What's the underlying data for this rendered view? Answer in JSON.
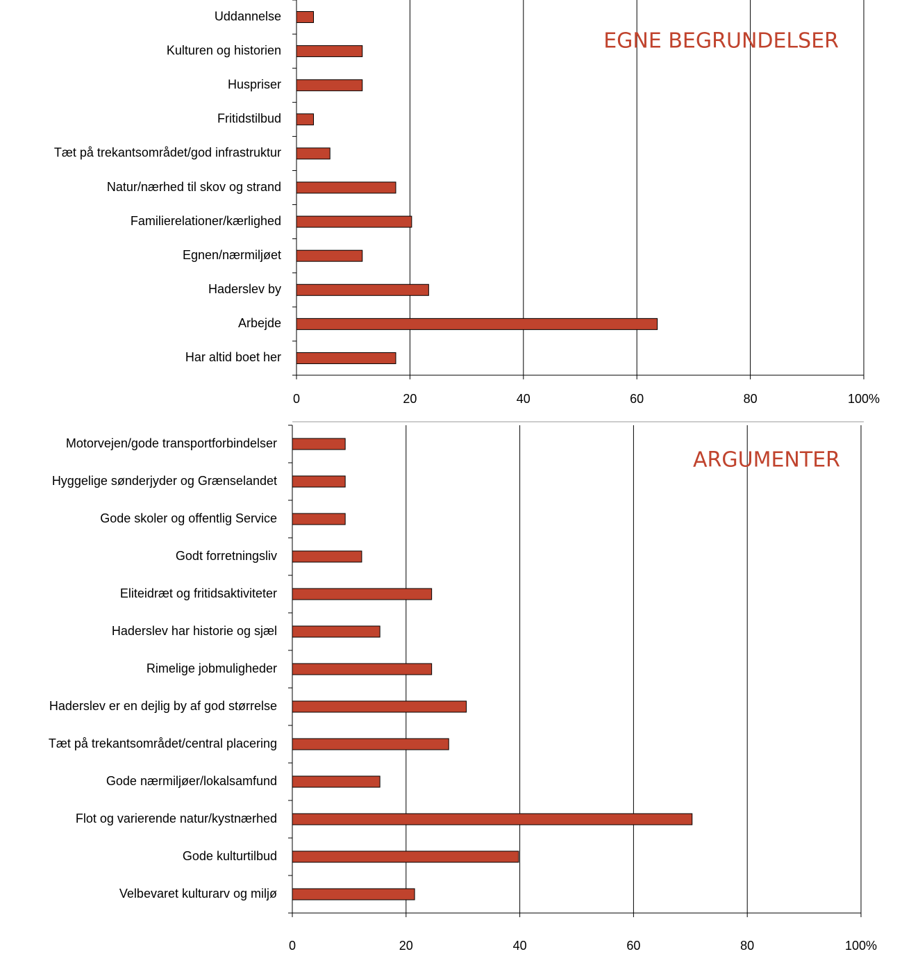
{
  "chart_data": [
    {
      "type": "bar",
      "orientation": "horizontal",
      "annotation": "EGNE BEGRUNDELSER",
      "categories": [
        "Uddannelse",
        "Kulturen og historien",
        "Huspriser",
        "Fritidstilbud",
        "Tæt på trekantsområdet/god infrastruktur",
        "Natur/nærhed til skov og strand",
        "Familierelationer/kærlighed",
        "Egnen/nærmiljøet",
        "Haderslev by",
        "Arbejde",
        "Har altid boet her"
      ],
      "values": [
        3,
        11.6,
        11.6,
        3,
        5.9,
        17.5,
        20.3,
        11.6,
        23.3,
        63.6,
        17.5
      ],
      "color": "#c0432d",
      "xlim": [
        0,
        100
      ],
      "xticks": [
        0,
        20,
        40,
        60,
        80,
        {
          "value": 100,
          "label": "100%"
        }
      ],
      "grid": true
    },
    {
      "type": "bar",
      "orientation": "horizontal",
      "annotation": "ARGUMENTER",
      "categories": [
        "Motorvejen/gode transportforbindelser",
        "Hyggelige sønderjyder og Grænselandet",
        "Gode skoler og offentlig Service",
        "Godt forretningsliv",
        "Eliteidræt og fritidsaktiviteter",
        "Haderslev har historie og sjæl",
        "Rimelige jobmuligheder",
        "Haderslev er en dejlig by af god størrelse",
        "Tæt på trekantsområdet/central placering",
        "Gode nærmiljøer/lokalsamfund",
        "Flot og varierende natur/kystnærhed",
        "Gode kulturtilbud",
        "Velbevaret kulturarv og miljø"
      ],
      "values": [
        9.3,
        9.3,
        9.3,
        12.2,
        24.5,
        15.4,
        24.5,
        30.6,
        27.5,
        15.4,
        70.3,
        39.8,
        21.5
      ],
      "color": "#c0432d",
      "xlim": [
        0,
        100
      ],
      "xticks": [
        0,
        20,
        40,
        60,
        80,
        {
          "value": 100,
          "label": "100%"
        }
      ],
      "grid": true
    }
  ]
}
